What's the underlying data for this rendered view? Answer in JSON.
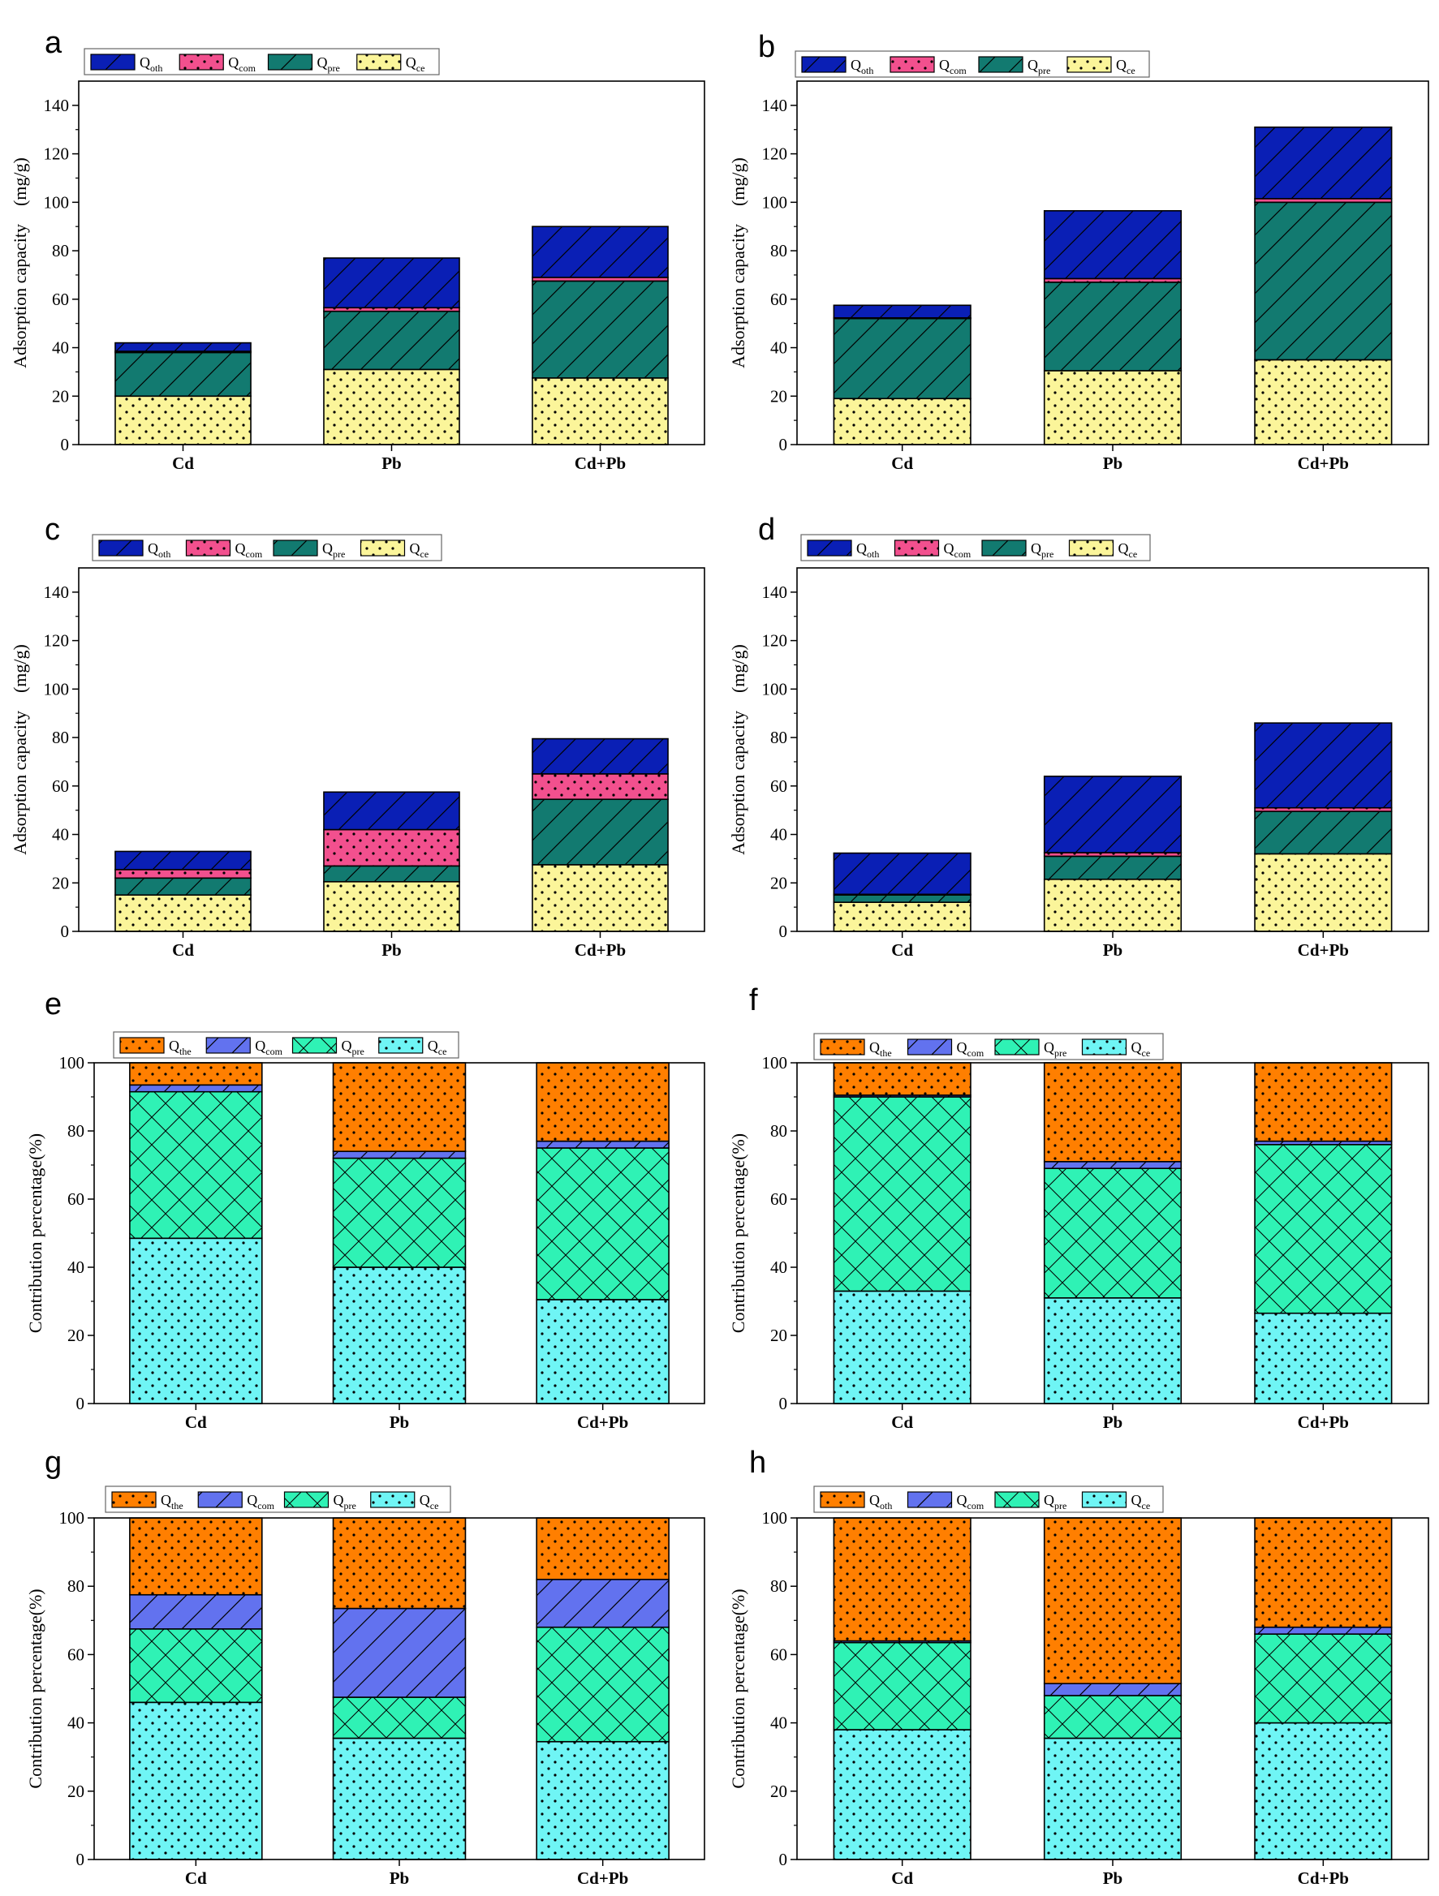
{
  "figure": {
    "colors": {
      "oth_dark": "#0a1fb5",
      "com_pink": "#f2508e",
      "pre_teal": "#127a70",
      "ce_yellow": "#fbf59a",
      "orange": "#ff7f00",
      "com_blue": "#6272ef",
      "pre_mint": "#2ff2b5",
      "ce_cyan": "#6ff5f5"
    }
  },
  "chart_data": [
    {
      "panel": "a",
      "type": "bar",
      "stacked": true,
      "categories": [
        "Cd",
        "Pb",
        "Cd+Pb"
      ],
      "ylabel": "Adsorption capacity　(mg/g)",
      "ylim": [
        0,
        150
      ],
      "yticks": [
        0,
        20,
        40,
        60,
        80,
        100,
        120,
        140
      ],
      "legend_position": "top-left",
      "series": [
        {
          "name": "Q",
          "sub": "ce",
          "color": "#fbf59a",
          "pattern": "dots",
          "values": [
            20,
            31,
            27.5
          ]
        },
        {
          "name": "Q",
          "sub": "pre",
          "color": "#127a70",
          "pattern": "hatch",
          "values": [
            18,
            24,
            40
          ]
        },
        {
          "name": "Q",
          "sub": "com",
          "color": "#f2508e",
          "pattern": "dots",
          "values": [
            0.5,
            1.5,
            1.5
          ]
        },
        {
          "name": "Q",
          "sub": "oth",
          "color": "#0a1fb5",
          "pattern": "hatch",
          "values": [
            3.5,
            20.5,
            21
          ]
        }
      ]
    },
    {
      "panel": "b",
      "type": "bar",
      "stacked": true,
      "categories": [
        "Cd",
        "Pb",
        "Cd+Pb"
      ],
      "ylabel": "Adsorption capacity　(mg/g)",
      "ylim": [
        0,
        150
      ],
      "yticks": [
        0,
        20,
        40,
        60,
        80,
        100,
        120,
        140
      ],
      "legend_position": "top-left",
      "series": [
        {
          "name": "Q",
          "sub": "ce",
          "color": "#fbf59a",
          "pattern": "dots",
          "values": [
            19,
            30.5,
            35
          ]
        },
        {
          "name": "Q",
          "sub": "pre",
          "color": "#127a70",
          "pattern": "hatch",
          "values": [
            33,
            36.5,
            65
          ]
        },
        {
          "name": "Q",
          "sub": "com",
          "color": "#f2508e",
          "pattern": "dots",
          "values": [
            0.3,
            1.5,
            1.5
          ]
        },
        {
          "name": "Q",
          "sub": "oth",
          "color": "#0a1fb5",
          "pattern": "hatch",
          "values": [
            5.2,
            28,
            29.5
          ]
        }
      ]
    },
    {
      "panel": "c",
      "type": "bar",
      "stacked": true,
      "categories": [
        "Cd",
        "Pb",
        "Cd+Pb"
      ],
      "ylabel": "Adsorption capacity　(mg/g)",
      "ylim": [
        0,
        150
      ],
      "yticks": [
        0,
        20,
        40,
        60,
        80,
        100,
        120,
        140
      ],
      "legend_position": "top-left",
      "series": [
        {
          "name": "Q",
          "sub": "ce",
          "color": "#fbf59a",
          "pattern": "dots",
          "values": [
            15,
            20.5,
            27.5
          ]
        },
        {
          "name": "Q",
          "sub": "pre",
          "color": "#127a70",
          "pattern": "hatch",
          "values": [
            7,
            6.5,
            27
          ]
        },
        {
          "name": "Q",
          "sub": "com",
          "color": "#f2508e",
          "pattern": "dots",
          "values": [
            3.5,
            15,
            10.5
          ]
        },
        {
          "name": "Q",
          "sub": "oth",
          "color": "#0a1fb5",
          "pattern": "hatch",
          "values": [
            7.5,
            15.5,
            14.5
          ]
        }
      ]
    },
    {
      "panel": "d",
      "type": "bar",
      "stacked": true,
      "categories": [
        "Cd",
        "Pb",
        "Cd+Pb"
      ],
      "ylabel": "Adsorption capacity　(mg/g)",
      "ylim": [
        0,
        150
      ],
      "yticks": [
        0,
        20,
        40,
        60,
        80,
        100,
        120,
        140
      ],
      "legend_position": "top-left",
      "series": [
        {
          "name": "Q",
          "sub": "ce",
          "color": "#fbf59a",
          "pattern": "dots",
          "values": [
            12,
            21.5,
            32
          ]
        },
        {
          "name": "Q",
          "sub": "pre",
          "color": "#127a70",
          "pattern": "hatch",
          "values": [
            3,
            9.5,
            17.5
          ]
        },
        {
          "name": "Q",
          "sub": "com",
          "color": "#f2508e",
          "pattern": "dots",
          "values": [
            0.3,
            1.5,
            1.5
          ]
        },
        {
          "name": "Q",
          "sub": "oth",
          "color": "#0a1fb5",
          "pattern": "hatch",
          "values": [
            17,
            31.5,
            35
          ]
        }
      ]
    },
    {
      "panel": "e",
      "type": "bar",
      "stacked": true,
      "categories": [
        "Cd",
        "Pb",
        "Cd+Pb"
      ],
      "ylabel": "Contribution percentage(%)",
      "ylim": [
        0,
        100
      ],
      "yticks": [
        0,
        20,
        40,
        60,
        80,
        100
      ],
      "legend_position": "top-left",
      "series": [
        {
          "name": "Q",
          "sub": "ce",
          "color": "#6ff5f5",
          "pattern": "dots",
          "values": [
            48.5,
            40,
            30.5
          ]
        },
        {
          "name": "Q",
          "sub": "pre",
          "color": "#2ff2b5",
          "pattern": "cross",
          "values": [
            43,
            32,
            44.5
          ]
        },
        {
          "name": "Q",
          "sub": "com",
          "color": "#6272ef",
          "pattern": "hatch",
          "values": [
            2,
            2,
            2
          ]
        },
        {
          "name": "Q",
          "sub": "the",
          "color": "#ff7f00",
          "pattern": "dots",
          "values": [
            6.5,
            26,
            23
          ]
        }
      ]
    },
    {
      "panel": "f",
      "type": "bar",
      "stacked": true,
      "categories": [
        "Cd",
        "Pb",
        "Cd+Pb"
      ],
      "ylabel": "Contribution percentage(%)",
      "ylim": [
        0,
        100
      ],
      "yticks": [
        0,
        20,
        40,
        60,
        80,
        100
      ],
      "legend_position": "top-left",
      "series": [
        {
          "name": "Q",
          "sub": "ce",
          "color": "#6ff5f5",
          "pattern": "dots",
          "values": [
            33,
            31,
            26.5
          ]
        },
        {
          "name": "Q",
          "sub": "pre",
          "color": "#2ff2b5",
          "pattern": "cross",
          "values": [
            57,
            38,
            49.5
          ]
        },
        {
          "name": "Q",
          "sub": "com",
          "color": "#6272ef",
          "pattern": "hatch",
          "values": [
            0.5,
            2,
            1
          ]
        },
        {
          "name": "Q",
          "sub": "the",
          "color": "#ff7f00",
          "pattern": "dots",
          "values": [
            9.5,
            29,
            23
          ]
        }
      ]
    },
    {
      "panel": "g",
      "type": "bar",
      "stacked": true,
      "categories": [
        "Cd",
        "Pb",
        "Cd+Pb"
      ],
      "ylabel": "Contribution percentage(%)",
      "ylim": [
        0,
        100
      ],
      "yticks": [
        0,
        20,
        40,
        60,
        80,
        100
      ],
      "legend_position": "top-left",
      "series": [
        {
          "name": "Q",
          "sub": "ce",
          "color": "#6ff5f5",
          "pattern": "dots",
          "values": [
            46,
            35.5,
            34.5
          ]
        },
        {
          "name": "Q",
          "sub": "pre",
          "color": "#2ff2b5",
          "pattern": "cross",
          "values": [
            21.5,
            12,
            33.5
          ]
        },
        {
          "name": "Q",
          "sub": "com",
          "color": "#6272ef",
          "pattern": "hatch",
          "values": [
            10,
            26,
            14
          ]
        },
        {
          "name": "Q",
          "sub": "the",
          "color": "#ff7f00",
          "pattern": "dots",
          "values": [
            22.5,
            26.5,
            18
          ]
        }
      ]
    },
    {
      "panel": "h",
      "type": "bar",
      "stacked": true,
      "categories": [
        "Cd",
        "Pb",
        "Cd+Pb"
      ],
      "ylabel": "Contribution percentage(%)",
      "ylim": [
        0,
        100
      ],
      "yticks": [
        0,
        20,
        40,
        60,
        80,
        100
      ],
      "legend_position": "top-left",
      "series": [
        {
          "name": "Q",
          "sub": "ce",
          "color": "#6ff5f5",
          "pattern": "dots",
          "values": [
            38,
            35.5,
            40
          ]
        },
        {
          "name": "Q",
          "sub": "pre",
          "color": "#2ff2b5",
          "pattern": "cross",
          "values": [
            25.5,
            12.5,
            26
          ]
        },
        {
          "name": "Q",
          "sub": "com",
          "color": "#6272ef",
          "pattern": "hatch",
          "values": [
            0.5,
            3.5,
            2
          ]
        },
        {
          "name": "Q",
          "sub": "oth",
          "color": "#ff7f00",
          "pattern": "dots",
          "values": [
            36,
            48.5,
            32
          ]
        }
      ]
    }
  ]
}
